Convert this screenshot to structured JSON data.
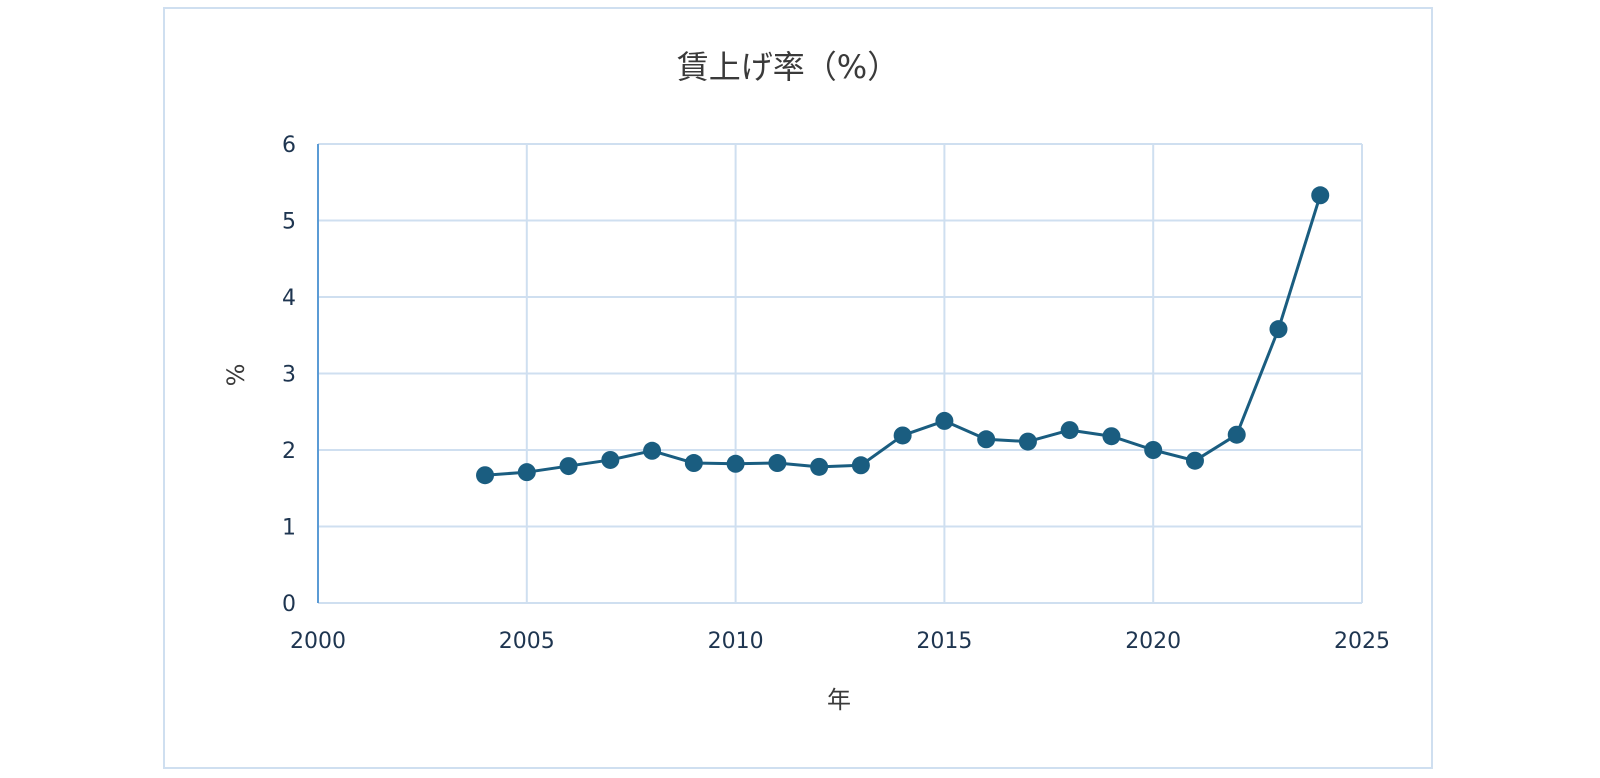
{
  "chart_data": {
    "type": "line",
    "title": "賃上げ率（%）",
    "xlabel": "年",
    "ylabel": "%",
    "xlim": [
      2000,
      2025
    ],
    "ylim": [
      0,
      6
    ],
    "xticks": [
      2000,
      2005,
      2010,
      2015,
      2020,
      2025
    ],
    "yticks": [
      0,
      1,
      2,
      3,
      4,
      5,
      6
    ],
    "grid": true,
    "legend": false,
    "colors": {
      "series": "#1a5d80",
      "grid": "#cfdff0",
      "axis": "#5b9bd5"
    },
    "series": [
      {
        "x": [
          2004,
          2005,
          2006,
          2007,
          2008,
          2009,
          2010,
          2011,
          2012,
          2013,
          2014,
          2015,
          2016,
          2017,
          2018,
          2019,
          2020,
          2021,
          2022,
          2023,
          2024
        ],
        "values": [
          1.67,
          1.71,
          1.79,
          1.87,
          1.99,
          1.83,
          1.82,
          1.83,
          1.78,
          1.8,
          2.19,
          2.38,
          2.14,
          2.11,
          2.26,
          2.18,
          2.0,
          1.86,
          2.2,
          3.58,
          5.33
        ]
      }
    ]
  }
}
